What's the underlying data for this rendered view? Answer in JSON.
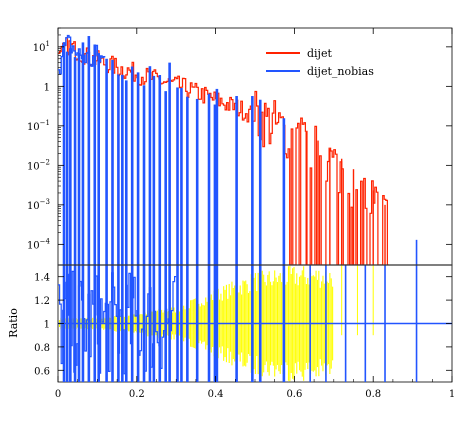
{
  "chart_data": [
    {
      "type": "line",
      "panel": "top",
      "yscale": "log",
      "xlim": [
        0,
        1
      ],
      "ylim": [
        3e-05,
        30
      ],
      "y_ticks": [
        {
          "value": 10,
          "base": "10",
          "exp": "1"
        },
        {
          "value": 1,
          "base": "1",
          "exp": ""
        },
        {
          "value": 0.1,
          "base": "10",
          "exp": "−1"
        },
        {
          "value": 0.01,
          "base": "10",
          "exp": "−2"
        },
        {
          "value": 0.001,
          "base": "10",
          "exp": "−3"
        },
        {
          "value": 0.0001,
          "base": "10",
          "exp": "−4"
        }
      ],
      "legend": {
        "placement": "top-right"
      },
      "series": [
        {
          "name": "dijet",
          "color": "#ff2200",
          "x": [
            0.005,
            0.015,
            0.025,
            0.035,
            0.045,
            0.055,
            0.065,
            0.075,
            0.085,
            0.095,
            0.11,
            0.13,
            0.15,
            0.17,
            0.19,
            0.21,
            0.23,
            0.25,
            0.27,
            0.29,
            0.31,
            0.33,
            0.35,
            0.37,
            0.39,
            0.41,
            0.43,
            0.45,
            0.47,
            0.49,
            0.51,
            0.53,
            0.55,
            0.57,
            0.59,
            0.61,
            0.63,
            0.65,
            0.67,
            0.69,
            0.71,
            0.73,
            0.75,
            0.77,
            0.79,
            0.81,
            0.83
          ],
          "y": [
            5,
            8,
            11,
            10,
            8,
            7,
            6.5,
            5.5,
            5,
            4.8,
            4.2,
            3.6,
            3.0,
            2.6,
            2.3,
            1.9,
            1.7,
            1.5,
            1.3,
            1.15,
            1.0,
            0.85,
            0.7,
            0.6,
            0.5,
            0.42,
            0.35,
            0.3,
            0.25,
            0.2,
            0.16,
            0.13,
            0.1,
            0.08,
            0.06,
            0.045,
            0.035,
            0.025,
            0.018,
            0.013,
            0.009,
            0.006,
            0.004,
            0.0025,
            0.0015,
            0.0009,
            0.0005
          ]
        },
        {
          "name": "dijet_nobias",
          "color": "#2255ff",
          "x": [
            0.005,
            0.015,
            0.025,
            0.035,
            0.045,
            0.055,
            0.065,
            0.075,
            0.085,
            0.095,
            0.11,
            0.13,
            0.15,
            0.17,
            0.19,
            0.21,
            0.23,
            0.25,
            0.27,
            0.29,
            0.31,
            0.33,
            0.35,
            0.37,
            0.39,
            0.41,
            0.43,
            0.45,
            0.49,
            0.51,
            0.57
          ],
          "y": [
            4,
            9,
            12,
            10,
            7,
            6,
            6,
            5,
            4.5,
            6,
            5,
            4,
            3,
            2.5,
            2,
            1.8,
            1.5,
            1.4,
            1.2,
            1.1,
            0.9,
            0.8,
            0.6,
            0.5,
            0.45,
            0.4,
            0.3,
            0.3,
            0.2,
            0.15,
            0.1
          ]
        }
      ]
    },
    {
      "type": "line",
      "panel": "bottom",
      "xlim": [
        0,
        1
      ],
      "ylim": [
        0.5,
        1.5
      ],
      "ylabel": "Ratio",
      "x_ticks": [
        "0",
        "0.2",
        "0.4",
        "0.6",
        "0.8",
        "1"
      ],
      "x_tick_values": [
        0,
        0.2,
        0.4,
        0.6,
        0.8,
        1
      ],
      "y_ticks": [
        "0.6",
        "0.8",
        "1",
        "1.2",
        "1.4"
      ],
      "y_tick_values": [
        0.6,
        0.8,
        1.0,
        1.2,
        1.4
      ],
      "reference_line": 1,
      "series": [
        {
          "name": "ratio",
          "color": "#2255ff",
          "x": [
            0.05,
            0.1,
            0.15,
            0.2,
            0.25,
            0.3
          ],
          "y": [
            1.0,
            0.9,
            1.1,
            1.0,
            0.95,
            1.05
          ]
        },
        {
          "name": "uncertainty",
          "color": "#ffff00",
          "x": [
            0.1,
            0.2,
            0.3,
            0.4,
            0.5,
            0.6
          ],
          "half_width": [
            0.05,
            0.1,
            0.15,
            0.3,
            0.45,
            0.5
          ]
        }
      ]
    }
  ]
}
